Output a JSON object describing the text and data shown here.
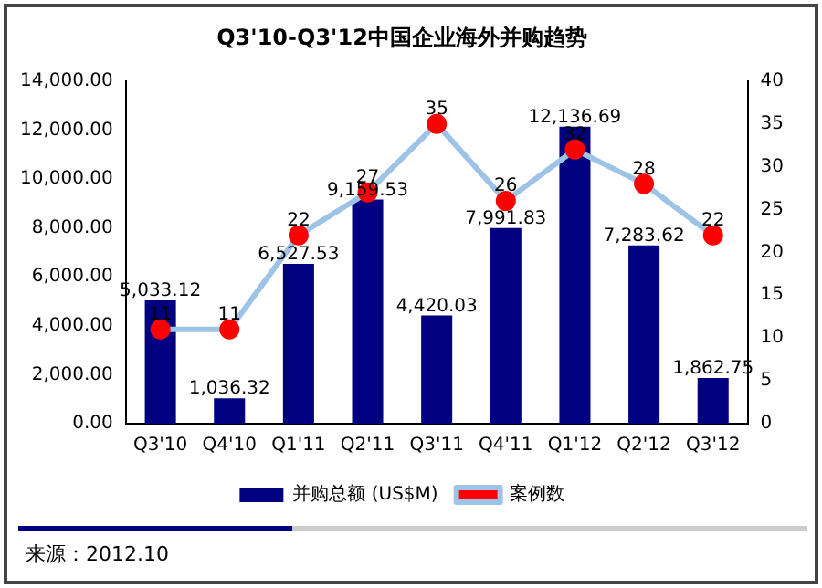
{
  "chart_data": {
    "type": "bar",
    "title": "Q3'10-Q3'12中国企业海外并购趋势",
    "categories": [
      "Q3'10",
      "Q4'10",
      "Q1'11",
      "Q2'11",
      "Q3'11",
      "Q4'11",
      "Q1'12",
      "Q2'12",
      "Q3'12"
    ],
    "series": [
      {
        "name": "并购总额 (US$M)",
        "color": "#000080",
        "values": [
          5033.12,
          1036.32,
          6527.53,
          9159.53,
          4420.03,
          7991.83,
          12136.69,
          7283.62,
          1862.75
        ],
        "value_labels": [
          "5,033.12",
          "1,036.32",
          "6,527.53",
          "9,159.53",
          "4,420.03",
          "7,991.83",
          "12,136.69",
          "7,283.62",
          "1,862.75"
        ]
      },
      {
        "name": "案例数",
        "type": "line",
        "axis": "y2",
        "color": "#9dc3e6",
        "colors": [
          "#ff0000",
          "#ff0000",
          "#ff0000",
          "#ff0000",
          "#ff0000",
          "#ff0000",
          "#ff0000",
          "#ff0000",
          "#ff0000"
        ],
        "values": [
          11,
          11,
          22,
          27,
          35,
          26,
          32,
          28,
          22
        ]
      }
    ],
    "ylim": [
      0,
      14000
    ],
    "yticks": [
      {
        "value": 0,
        "label": "0.00"
      },
      {
        "value": 2000,
        "label": "2,000.00"
      },
      {
        "value": 4000,
        "label": "4,000.00"
      },
      {
        "value": 6000,
        "label": "6,000.00"
      },
      {
        "value": 8000,
        "label": "8,000.00"
      },
      {
        "value": 10000,
        "label": "10,000.00"
      },
      {
        "value": 12000,
        "label": "12,000.00"
      },
      {
        "value": 14000,
        "label": "14,000.00"
      }
    ],
    "y2lim": [
      0,
      40
    ],
    "y2ticks": [
      0,
      5,
      10,
      15,
      20,
      25,
      30,
      35,
      40
    ],
    "data_labels": true,
    "legend": "bottom",
    "grid": false,
    "marker": "circle",
    "line_style": "solid",
    "annotations": [
      "来源：2012.10"
    ]
  }
}
